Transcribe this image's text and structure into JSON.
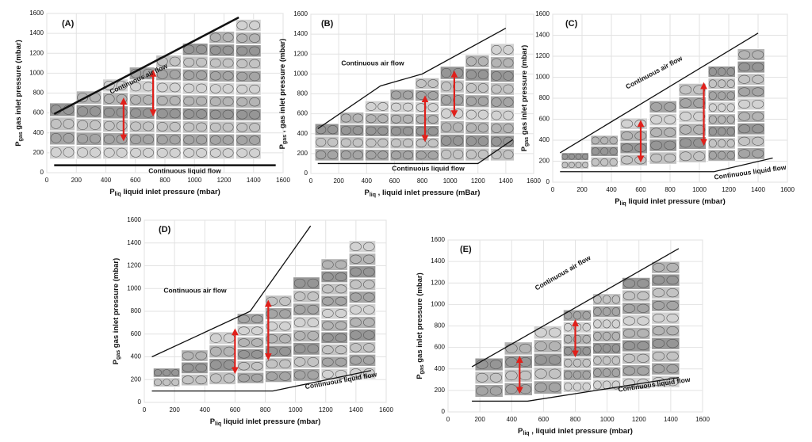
{
  "chart_data": [
    {
      "type": "line",
      "title": "(A)",
      "xlabel": {
        "symbol": "P",
        "subscript": "liq",
        "text": " liquid inlet pressure (mbar)"
      },
      "ylabel": {
        "symbol": "P",
        "subscript": "gas",
        "text": " gas inlet pressure (mbar)"
      },
      "xlim": [
        0,
        1600
      ],
      "ylim": [
        0,
        1600
      ],
      "xticks": [
        0,
        200,
        400,
        600,
        800,
        1000,
        1200,
        1400,
        1600
      ],
      "yticks": [
        0,
        200,
        400,
        600,
        800,
        1000,
        1200,
        1400,
        1600
      ],
      "annotations": [
        "Continuous air flow",
        "Continuous liquid flow"
      ],
      "series": [
        {
          "color": "#111111",
          "x": [
            50,
            1300
          ],
          "values": [
            590,
            1560
          ]
        },
        {
          "color": "#111111",
          "x": [
            50,
            1550
          ],
          "values": [
            75,
            75
          ]
        }
      ]
    },
    {
      "type": "line",
      "title": "(B)",
      "xlabel": {
        "symbol": "P",
        "subscript": "liq",
        "text": " , liquid inlet pressure (mBar)"
      },
      "ylabel": {
        "symbol": "P",
        "subscript": "gas",
        "text": " , gas inlet pressure (mbar)"
      },
      "xlim": [
        0,
        1600
      ],
      "ylim": [
        0,
        1600
      ],
      "xticks": [
        0,
        200,
        400,
        600,
        800,
        1000,
        1200,
        1400,
        1600
      ],
      "yticks": [
        0,
        200,
        400,
        600,
        800,
        1000,
        1200,
        1400,
        1600
      ],
      "annotations": [
        "Continuous air flow",
        "Continuous liquid flow"
      ],
      "series": [
        {
          "color": "#111111",
          "x": [
            50,
            500,
            800,
            1400
          ],
          "values": [
            450,
            880,
            1000,
            1460
          ]
        },
        {
          "color": "#111111",
          "x": [
            50,
            1200,
            1450
          ],
          "values": [
            100,
            100,
            340
          ]
        }
      ]
    },
    {
      "type": "line",
      "title": "(C)",
      "xlabel": {
        "symbol": "P",
        "subscript": "liq",
        "text": " liquid inlet pressure (mbar)"
      },
      "ylabel": {
        "symbol": "P",
        "subscript": "gas",
        "text": " gas inlet pressure (mbar)"
      },
      "xlim": [
        0,
        1600
      ],
      "ylim": [
        0,
        1600
      ],
      "xticks": [
        0,
        200,
        400,
        600,
        800,
        1000,
        1200,
        1400,
        1600
      ],
      "yticks": [
        0,
        200,
        400,
        600,
        800,
        1000,
        1200,
        1400,
        1600
      ],
      "annotations": [
        "Continuous air flow",
        "Continuous liquid flow"
      ],
      "series": [
        {
          "color": "#111111",
          "x": [
            50,
            1400
          ],
          "values": [
            280,
            1420
          ]
        },
        {
          "color": "#111111",
          "x": [
            50,
            1100,
            1500
          ],
          "values": [
            100,
            100,
            230
          ]
        }
      ]
    },
    {
      "type": "line",
      "title": "(D)",
      "xlabel": {
        "symbol": "P",
        "subscript": "liq",
        "text": " liquid inlet pressure (mbar)"
      },
      "ylabel": {
        "symbol": "P",
        "subscript": "gas",
        "text": " gas inlet pressure (mbar)"
      },
      "xlim": [
        0,
        1600
      ],
      "ylim": [
        0,
        1600
      ],
      "xticks": [
        0,
        200,
        400,
        600,
        800,
        1000,
        1200,
        1400,
        1600
      ],
      "yticks": [
        0,
        200,
        400,
        600,
        800,
        1000,
        1200,
        1400,
        1600
      ],
      "annotations": [
        "Continuous air flow",
        "Continuous liquid flow"
      ],
      "series": [
        {
          "color": "#111111",
          "x": [
            50,
            700,
            1100
          ],
          "values": [
            400,
            800,
            1550
          ]
        },
        {
          "color": "#111111",
          "x": [
            50,
            850,
            1500
          ],
          "values": [
            100,
            100,
            280
          ]
        }
      ]
    },
    {
      "type": "line",
      "title": "(E)",
      "xlabel": {
        "symbol": "P",
        "subscript": "liq",
        "text": " , liquid inlet pressure (mbar)"
      },
      "ylabel": {
        "symbol": "P",
        "subscript": "gas",
        "text": " gas inlet pressure (mbar)"
      },
      "xlim": [
        0,
        1600
      ],
      "ylim": [
        0,
        1600
      ],
      "xticks": [
        0,
        200,
        400,
        600,
        800,
        1000,
        1200,
        1400,
        1600
      ],
      "yticks": [
        0,
        200,
        400,
        600,
        800,
        1000,
        1200,
        1400,
        1600
      ],
      "annotations": [
        "Continuous air flow",
        "Continuous liquid flow"
      ],
      "series": [
        {
          "color": "#111111",
          "x": [
            150,
            1450
          ],
          "values": [
            420,
            1520
          ]
        },
        {
          "color": "#111111",
          "x": [
            150,
            500,
            1450
          ],
          "values": [
            100,
            100,
            320
          ]
        }
      ]
    }
  ]
}
